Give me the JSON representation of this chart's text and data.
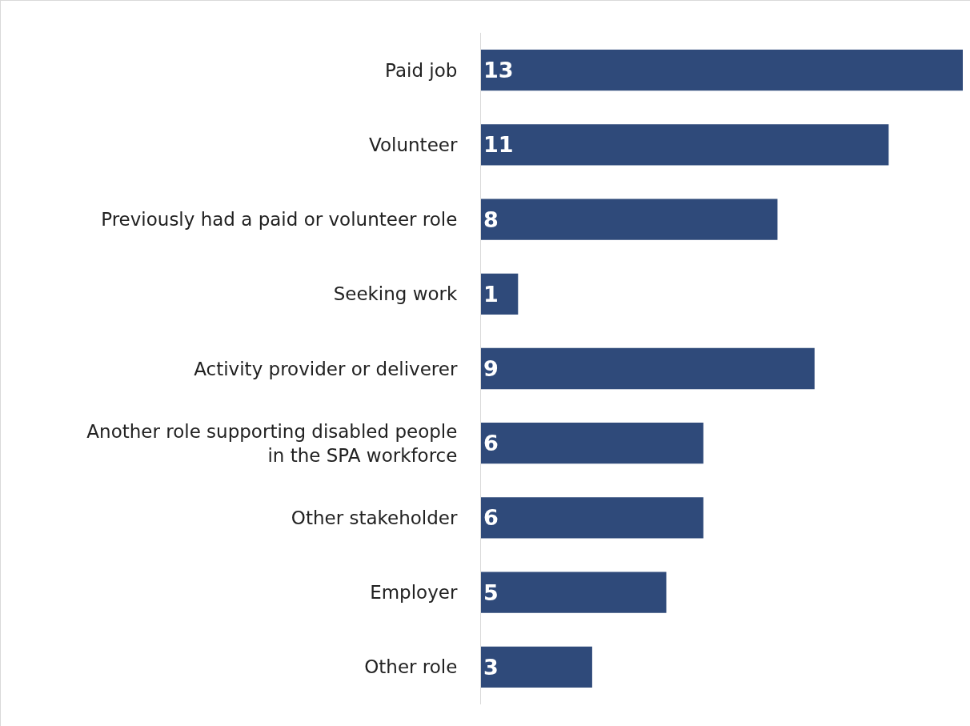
{
  "chart_data": {
    "type": "bar",
    "orientation": "horizontal",
    "categories": [
      "Paid job",
      "Volunteer",
      "Previously had a paid or volunteer role",
      "Seeking work",
      "Activity provider or deliverer",
      "Another role supporting disabled people in the SPA workforce",
      "Other stakeholder",
      "Employer",
      "Other role"
    ],
    "values": [
      13,
      11,
      8,
      1,
      9,
      6,
      6,
      5,
      3
    ],
    "color": "#2f4a7a",
    "xlim": [
      0,
      13
    ],
    "data_labels": true,
    "tick_labels": "y"
  }
}
